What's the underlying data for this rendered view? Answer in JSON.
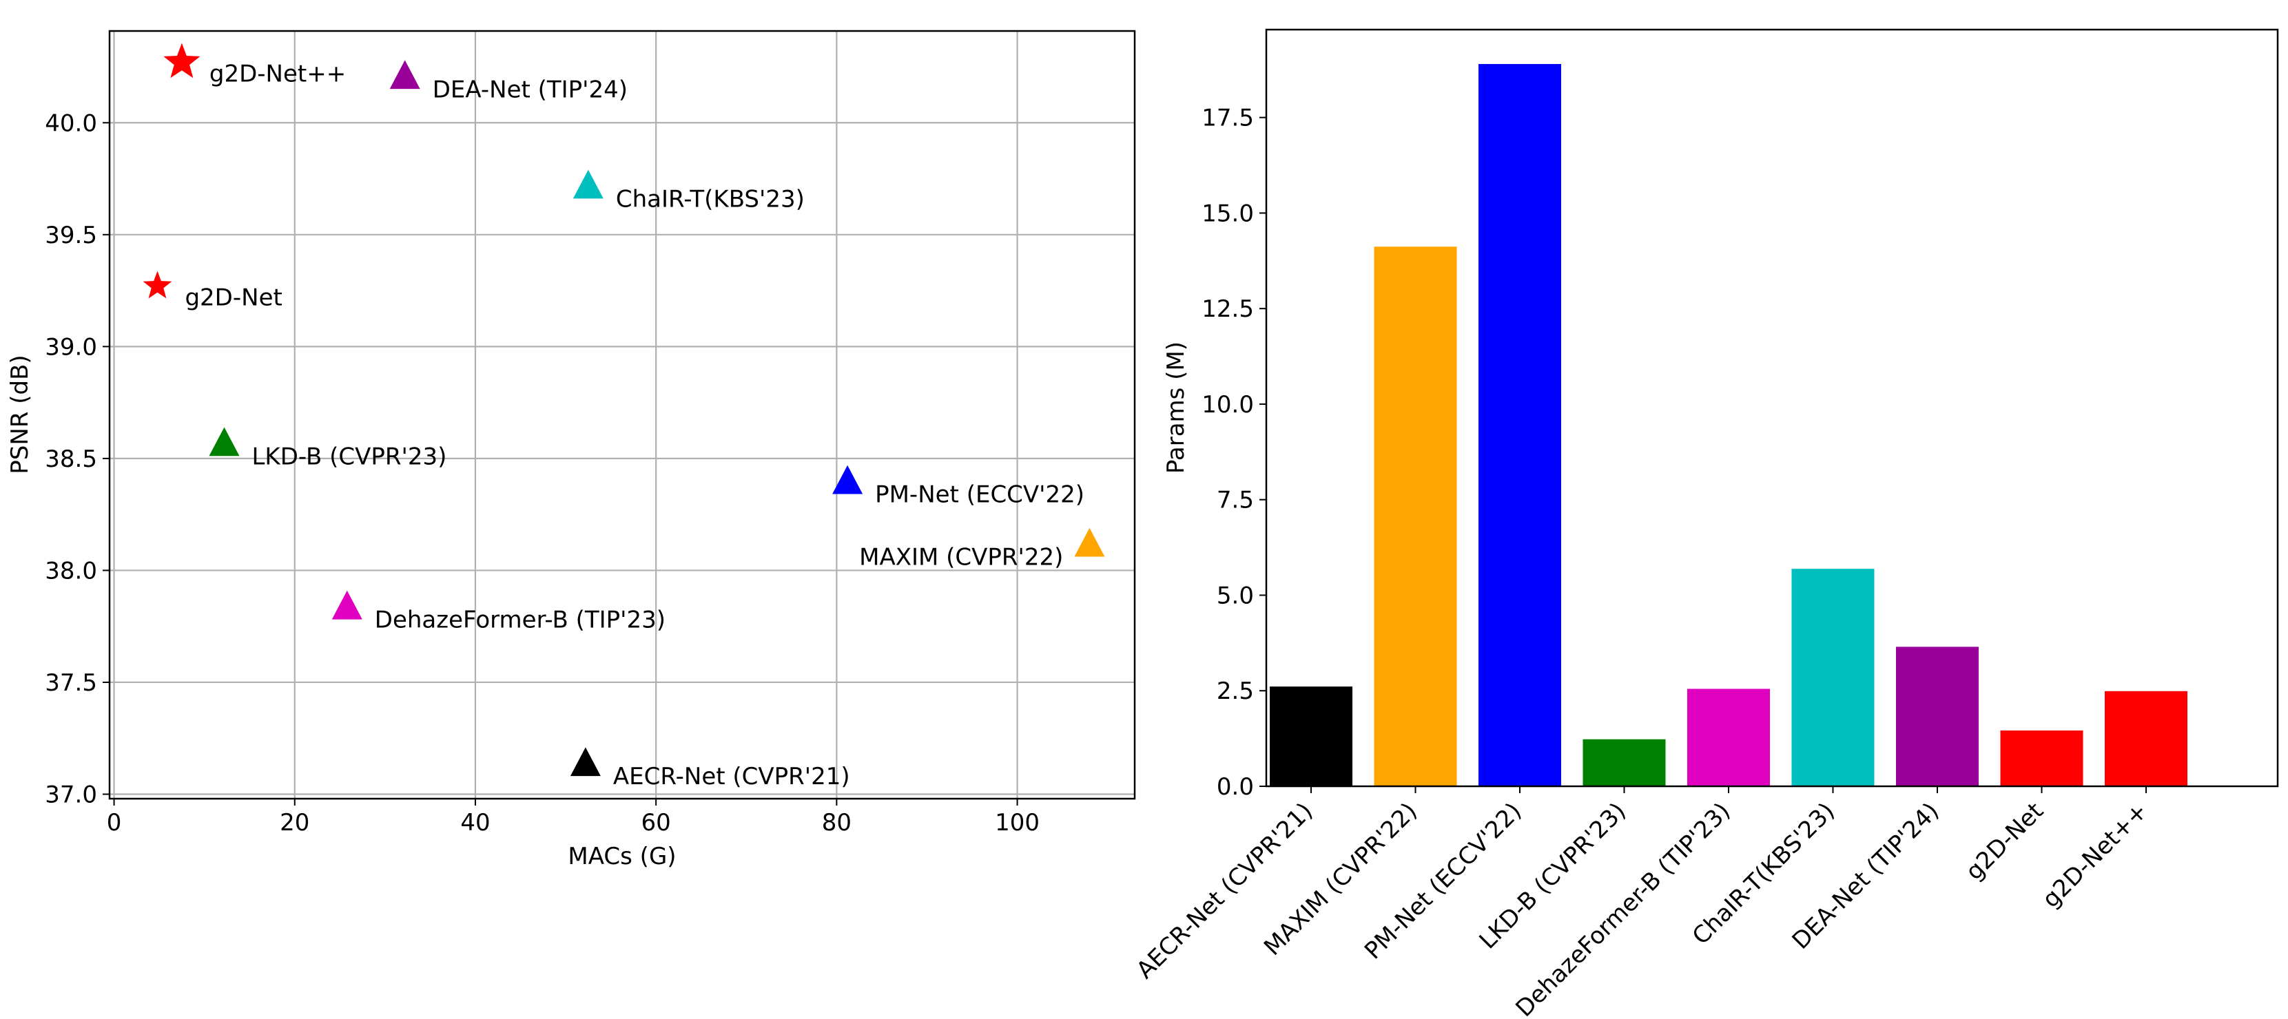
{
  "chart_data": [
    {
      "type": "scatter",
      "xlabel": "MACs (G)",
      "ylabel": "PSNR (dB)",
      "xlim": [
        -0.5,
        113
      ],
      "ylim": [
        36.98,
        40.41
      ],
      "grid": true,
      "xticks": [
        0,
        20,
        40,
        60,
        80,
        100
      ],
      "yticks": [
        37.0,
        37.5,
        38.0,
        38.5,
        39.0,
        39.5,
        40.0
      ],
      "xtick_labels": [
        "0",
        "20",
        "40",
        "60",
        "80",
        "100"
      ],
      "ytick_labels": [
        "37.0",
        "37.5",
        "38.0",
        "38.5",
        "39.0",
        "39.5",
        "40.0"
      ],
      "points": [
        {
          "label": "g2D-Net++",
          "x": 7.5,
          "y": 40.27,
          "marker": "star",
          "size": "large",
          "color": "#ff0000",
          "label_side": "right"
        },
        {
          "label": "DEA-Net (TIP'24)",
          "x": 32.2,
          "y": 40.2,
          "marker": "triangle",
          "color": "#990099",
          "label_side": "right"
        },
        {
          "label": "ChaIR-T(KBS'23)",
          "x": 52.5,
          "y": 39.71,
          "marker": "triangle",
          "color": "#00bfbf",
          "label_side": "right"
        },
        {
          "label": "g2D-Net",
          "x": 4.8,
          "y": 39.27,
          "marker": "star",
          "size": "small",
          "color": "#ff0000",
          "label_side": "right"
        },
        {
          "label": "LKD-B (CVPR'23)",
          "x": 12.2,
          "y": 38.56,
          "marker": "triangle",
          "color": "#008000",
          "label_side": "right"
        },
        {
          "label": "PM-Net (ECCV'22)",
          "x": 81.2,
          "y": 38.39,
          "marker": "triangle",
          "color": "#0000ff",
          "label_side": "right"
        },
        {
          "label": "MAXIM (CVPR'22)",
          "x": 108,
          "y": 38.11,
          "marker": "triangle",
          "color": "#ffa500",
          "label_side": "left"
        },
        {
          "label": "DehazeFormer-B (TIP'23)",
          "x": 25.8,
          "y": 37.83,
          "marker": "triangle",
          "color": "#e000c0",
          "label_side": "right"
        },
        {
          "label": "AECR-Net (CVPR'21)",
          "x": 52.2,
          "y": 37.13,
          "marker": "triangle",
          "color": "#000000",
          "label_side": "right"
        }
      ]
    },
    {
      "type": "bar",
      "ylabel": "Params (M)",
      "ylim": [
        0,
        19.8
      ],
      "grid": false,
      "yticks": [
        0.0,
        2.5,
        5.0,
        7.5,
        10.0,
        12.5,
        15.0,
        17.5
      ],
      "ytick_labels": [
        "0.0",
        "2.5",
        "5.0",
        "7.5",
        "10.0",
        "12.5",
        "15.0",
        "17.5"
      ],
      "categories": [
        "AECR-Net (CVPR'21)",
        "MAXIM (CVPR'22)",
        "PM-Net (ECCV'22)",
        "LKD-B (CVPR'23)",
        "DehazeFormer-B (TIP'23)",
        "ChaIR-T(KBS'23)",
        "DEA-Net (TIP'24)",
        "g2D-Net",
        "g2D-Net++"
      ],
      "values": [
        2.61,
        14.12,
        18.9,
        1.23,
        2.55,
        5.69,
        3.65,
        1.46,
        2.49
      ],
      "colors": [
        "#000000",
        "#ffa500",
        "#0000ff",
        "#008000",
        "#e000c0",
        "#00bfbf",
        "#990099",
        "#ff0000",
        "#ff0000"
      ]
    }
  ]
}
